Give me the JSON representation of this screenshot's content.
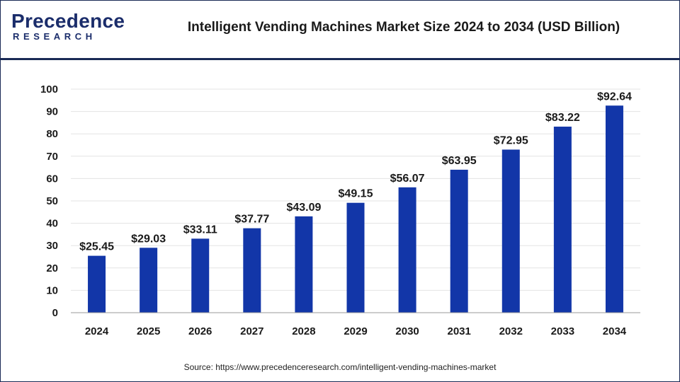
{
  "brand": {
    "logo_top": "Precedence",
    "logo_bottom": "RESEARCH",
    "color": "#1b2d6b"
  },
  "header": {
    "title": "Intelligent Vending Machines Market Size 2024 to 2034 (USD Billion)"
  },
  "footer": {
    "source": "Source: https://www.precedenceresearch.com/intelligent-vending-machines-market"
  },
  "chart_data": {
    "type": "bar",
    "title": "Intelligent Vending Machines Market Size 2024 to 2034 (USD Billion)",
    "categories": [
      "2024",
      "2025",
      "2026",
      "2027",
      "2028",
      "2029",
      "2030",
      "2031",
      "2032",
      "2033",
      "2034"
    ],
    "values": [
      25.45,
      29.03,
      33.11,
      37.77,
      43.09,
      49.15,
      56.07,
      63.95,
      72.95,
      83.22,
      92.64
    ],
    "data_labels": [
      "$25.45",
      "$29.03",
      "$33.11",
      "$37.77",
      "$43.09",
      "$49.15",
      "$56.07",
      "$63.95",
      "$72.95",
      "$83.22",
      "$92.64"
    ],
    "yticks": [
      0,
      10,
      20,
      30,
      40,
      50,
      60,
      70,
      80,
      90,
      100
    ],
    "ylim": [
      0,
      100
    ],
    "xlabel": "",
    "ylabel": "",
    "grid": true,
    "legend": "none",
    "bar_color": "#1236a8"
  }
}
